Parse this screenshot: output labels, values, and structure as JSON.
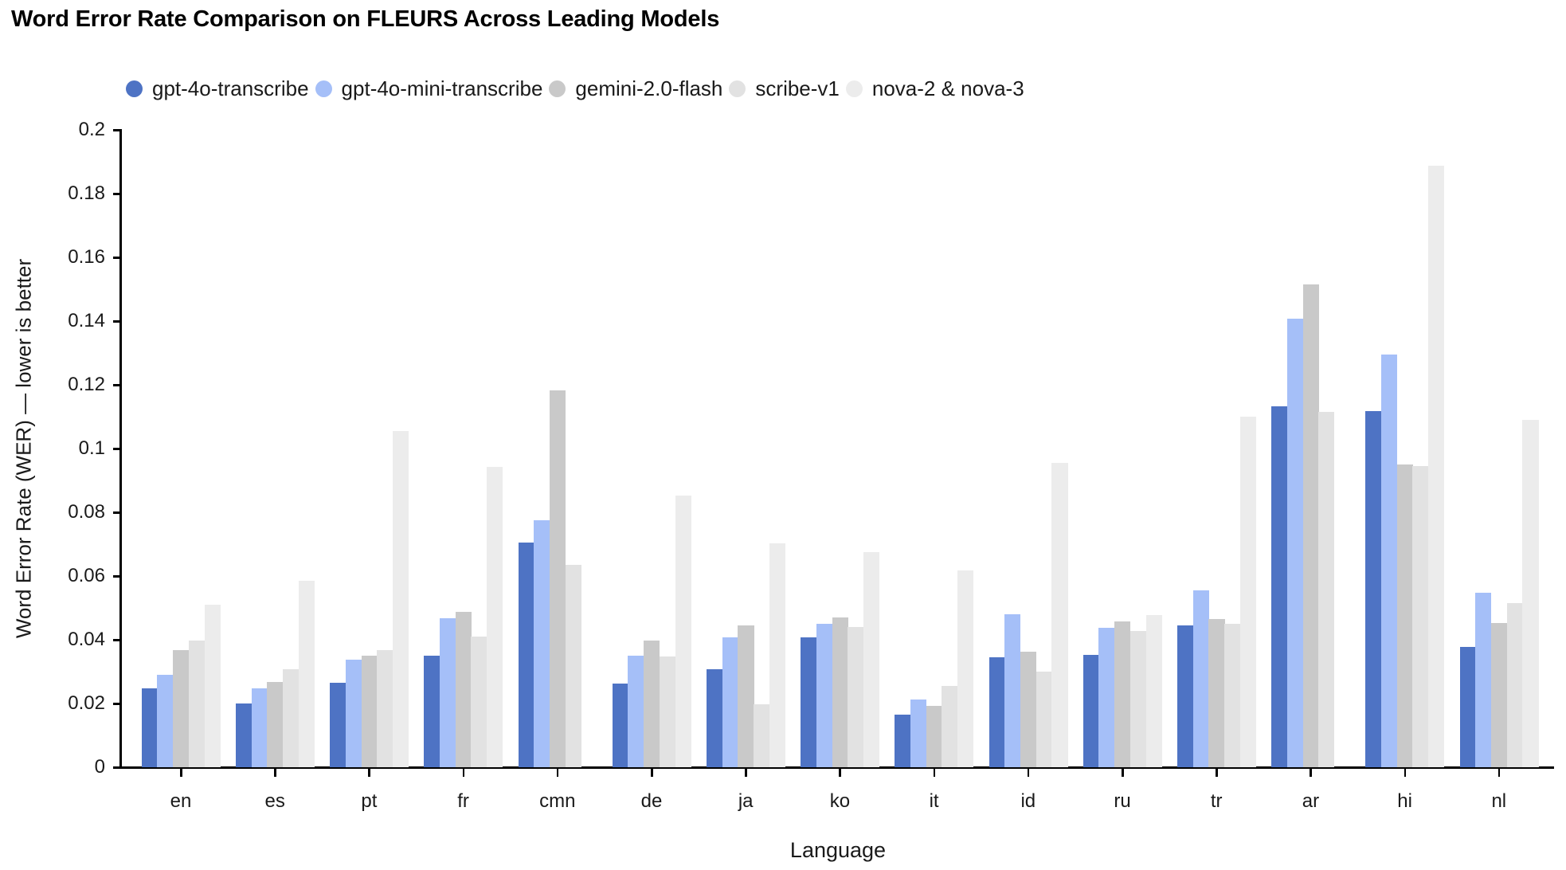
{
  "page": {
    "title": "Word Error Rate Comparison on FLEURS Across Leading Models"
  },
  "chart_data": {
    "type": "bar",
    "title": "Word Error Rate Comparison on FLEURS Across Leading Models",
    "xlabel": "Language",
    "ylabel": "Word Error Rate (WER) — lower is better",
    "ylim": [
      0,
      0.2
    ],
    "ytick_step": 0.02,
    "grid": false,
    "legend_position": "top",
    "background": "#ffffff",
    "axis_color": "#000000",
    "text_color": "#1a1a1a",
    "categories": [
      "en",
      "es",
      "pt",
      "fr",
      "cmn",
      "de",
      "ja",
      "ko",
      "it",
      "id",
      "ru",
      "tr",
      "ar",
      "hi",
      "nl"
    ],
    "series": [
      {
        "name": "gpt-4o-transcribe",
        "color": "#4e73c4",
        "values": [
          0.0248,
          0.0201,
          0.0264,
          0.0349,
          0.0706,
          0.0262,
          0.0308,
          0.0408,
          0.0166,
          0.0345,
          0.0353,
          0.0444,
          0.1133,
          0.1117,
          0.0378
        ]
      },
      {
        "name": "gpt-4o-mini-transcribe",
        "color": "#a5bff8",
        "values": [
          0.0289,
          0.0247,
          0.0337,
          0.0467,
          0.0774,
          0.0349,
          0.0408,
          0.0451,
          0.0212,
          0.048,
          0.0437,
          0.0556,
          0.1408,
          0.1295,
          0.0547
        ]
      },
      {
        "name": "gemini-2.0-flash",
        "color": "#c9c9c9",
        "values": [
          0.0368,
          0.0268,
          0.0351,
          0.0487,
          0.1183,
          0.0398,
          0.0445,
          0.047,
          0.0193,
          0.0362,
          0.0458,
          0.0466,
          0.1516,
          0.095,
          0.0453
        ]
      },
      {
        "name": "scribe-v1",
        "color": "#e2e2e2",
        "values": [
          0.0398,
          0.0308,
          0.0368,
          0.0409,
          0.0634,
          0.0347,
          0.0198,
          0.0439,
          0.0256,
          0.0301,
          0.0428,
          0.0451,
          0.1116,
          0.0945,
          0.0516
        ]
      },
      {
        "name": "nova-2 & nova-3",
        "color": "#ececec",
        "values": [
          0.051,
          0.0584,
          0.1056,
          0.0942,
          null,
          0.0853,
          0.0703,
          0.0674,
          0.0618,
          0.0955,
          0.0478,
          0.1099,
          null,
          0.1887,
          0.1089
        ]
      }
    ]
  }
}
